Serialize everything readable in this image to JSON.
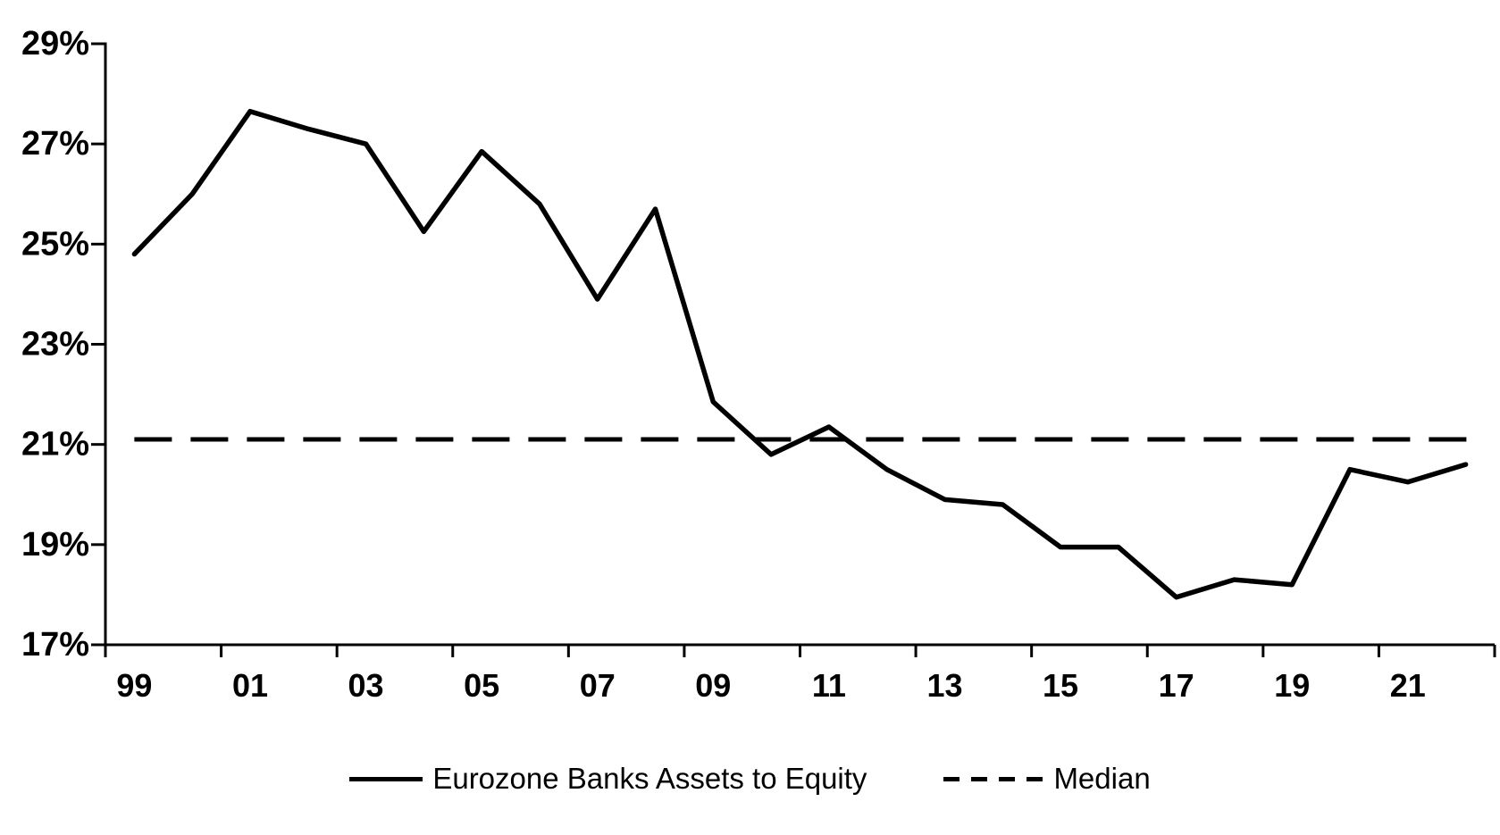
{
  "chart_data": {
    "type": "line",
    "title": "",
    "xlabel": "",
    "ylabel": "",
    "x": [
      1999,
      2000,
      2001,
      2002,
      2003,
      2004,
      2005,
      2006,
      2007,
      2008,
      2009,
      2010,
      2011,
      2012,
      2013,
      2014,
      2015,
      2016,
      2017,
      2018,
      2019,
      2020,
      2021,
      2022
    ],
    "series": [
      {
        "name": "Eurozone Banks Assets to Equity",
        "style": "solid",
        "values": [
          24.8,
          26.0,
          27.65,
          27.3,
          27.0,
          25.25,
          26.85,
          25.8,
          23.9,
          25.7,
          21.85,
          20.8,
          21.35,
          20.5,
          19.9,
          19.8,
          18.95,
          18.95,
          17.95,
          18.3,
          18.2,
          20.5,
          20.25,
          20.6
        ]
      },
      {
        "name": "Median",
        "style": "dashed",
        "value": 21.1
      }
    ],
    "ylim": [
      17,
      29
    ],
    "y_tick_step": 2,
    "y_tick_labels": [
      "17%",
      "19%",
      "21%",
      "23%",
      "25%",
      "27%",
      "29%"
    ],
    "x_tick_labels": [
      "99",
      "01",
      "03",
      "05",
      "07",
      "09",
      "11",
      "13",
      "15",
      "17",
      "19",
      "21"
    ],
    "unit": "%",
    "grid": false,
    "legend_position": "bottom-center",
    "colors": {
      "ink": "#000000",
      "background": "#ffffff"
    }
  }
}
